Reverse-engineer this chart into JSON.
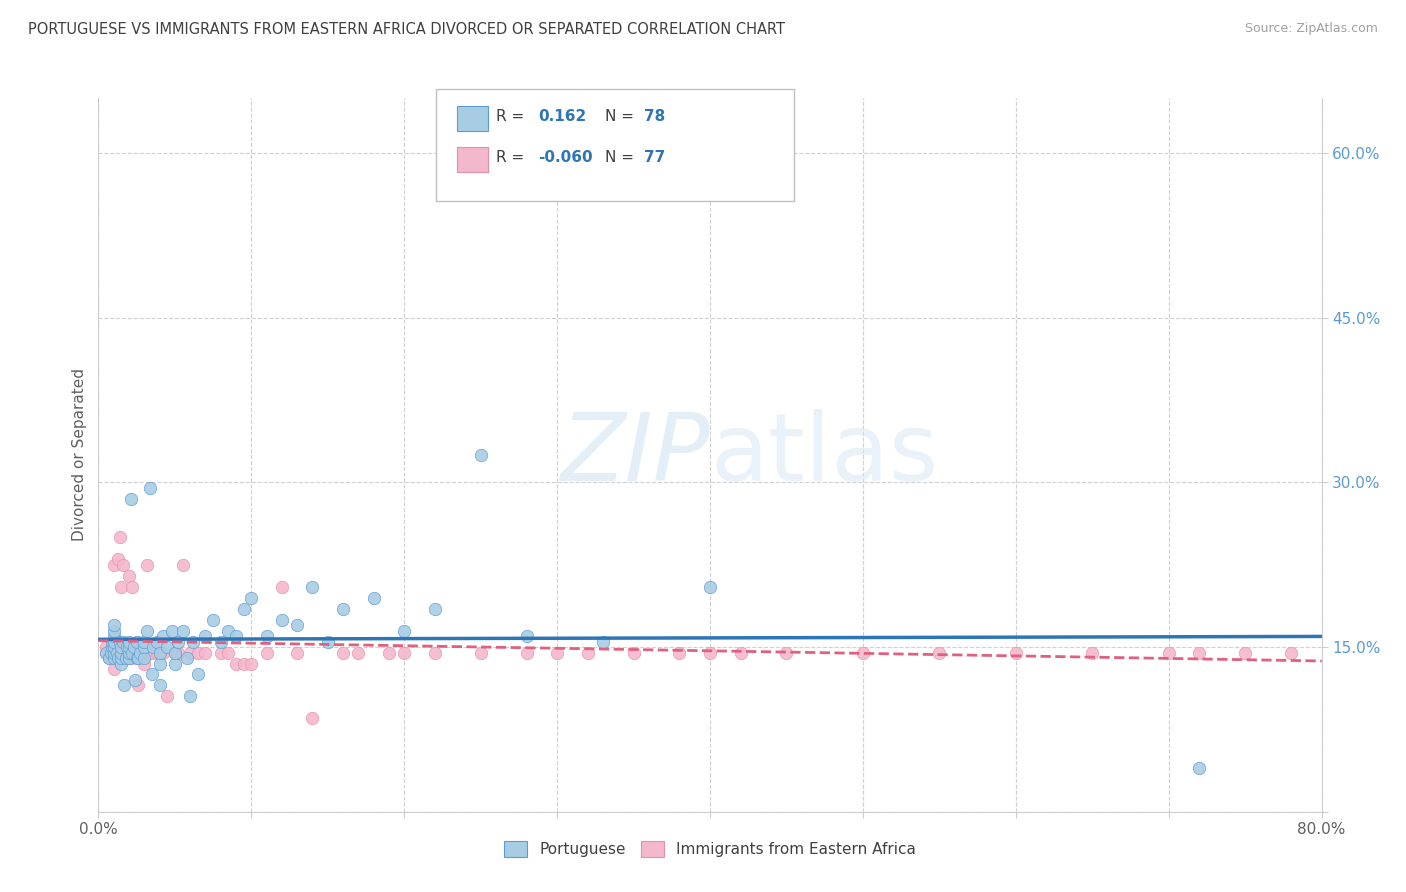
{
  "title": "PORTUGUESE VS IMMIGRANTS FROM EASTERN AFRICA DIVORCED OR SEPARATED CORRELATION CHART",
  "source": "Source: ZipAtlas.com",
  "ylabel": "Divorced or Separated",
  "xlim": [
    0.0,
    0.8
  ],
  "ylim": [
    0.0,
    0.65
  ],
  "x_tick_positions": [
    0.0,
    0.1,
    0.2,
    0.3,
    0.4,
    0.5,
    0.6,
    0.7,
    0.8
  ],
  "y_ticks_right": [
    0.0,
    0.15,
    0.3,
    0.45,
    0.6
  ],
  "y_tick_labels_right": [
    "",
    "15.0%",
    "30.0%",
    "45.0%",
    "60.0%"
  ],
  "color_blue_fill": "#a8cce4",
  "color_blue_edge": "#5b9bd5",
  "color_pink_fill": "#f4b8cc",
  "color_pink_edge": "#e88fa8",
  "color_line_blue": "#2e75b6",
  "color_line_pink": "#e06080",
  "color_grid": "#d0d0d0",
  "color_title": "#404040",
  "color_source": "#a0a0a0",
  "color_ylabel": "#606060",
  "color_ytick": "#5b9bd5",
  "color_xtick": "#606060",
  "watermark_color": "#d0e4f0",
  "background": "#ffffff",
  "portuguese_x": [
    0.005,
    0.007,
    0.008,
    0.009,
    0.009,
    0.01,
    0.01,
    0.01,
    0.01,
    0.01,
    0.01,
    0.01,
    0.012,
    0.013,
    0.014,
    0.015,
    0.015,
    0.015,
    0.015,
    0.016,
    0.017,
    0.018,
    0.019,
    0.02,
    0.02,
    0.02,
    0.02,
    0.021,
    0.022,
    0.023,
    0.024,
    0.025,
    0.025,
    0.026,
    0.027,
    0.03,
    0.03,
    0.03,
    0.032,
    0.034,
    0.035,
    0.036,
    0.038,
    0.04,
    0.04,
    0.04,
    0.042,
    0.045,
    0.048,
    0.05,
    0.05,
    0.052,
    0.055,
    0.058,
    0.06,
    0.062,
    0.065,
    0.07,
    0.075,
    0.08,
    0.085,
    0.09,
    0.095,
    0.1,
    0.11,
    0.12,
    0.13,
    0.14,
    0.15,
    0.16,
    0.18,
    0.2,
    0.22,
    0.25,
    0.28,
    0.33,
    0.4,
    0.72
  ],
  "portuguese_y": [
    0.145,
    0.14,
    0.145,
    0.15,
    0.155,
    0.14,
    0.145,
    0.15,
    0.155,
    0.16,
    0.165,
    0.17,
    0.145,
    0.14,
    0.155,
    0.135,
    0.14,
    0.145,
    0.15,
    0.155,
    0.115,
    0.14,
    0.15,
    0.14,
    0.145,
    0.15,
    0.155,
    0.285,
    0.145,
    0.15,
    0.12,
    0.14,
    0.155,
    0.14,
    0.145,
    0.14,
    0.15,
    0.155,
    0.165,
    0.295,
    0.125,
    0.15,
    0.155,
    0.115,
    0.135,
    0.145,
    0.16,
    0.15,
    0.165,
    0.135,
    0.145,
    0.155,
    0.165,
    0.14,
    0.105,
    0.155,
    0.125,
    0.16,
    0.175,
    0.155,
    0.165,
    0.16,
    0.185,
    0.195,
    0.16,
    0.175,
    0.17,
    0.205,
    0.155,
    0.185,
    0.195,
    0.165,
    0.185,
    0.325,
    0.16,
    0.155,
    0.205,
    0.04
  ],
  "immigrants_x": [
    0.005,
    0.005,
    0.006,
    0.007,
    0.008,
    0.009,
    0.009,
    0.01,
    0.01,
    0.01,
    0.01,
    0.01,
    0.01,
    0.01,
    0.011,
    0.012,
    0.013,
    0.014,
    0.015,
    0.015,
    0.015,
    0.016,
    0.017,
    0.018,
    0.02,
    0.02,
    0.02,
    0.021,
    0.022,
    0.025,
    0.025,
    0.026,
    0.03,
    0.03,
    0.032,
    0.035,
    0.038,
    0.04,
    0.042,
    0.045,
    0.05,
    0.052,
    0.055,
    0.06,
    0.065,
    0.07,
    0.08,
    0.085,
    0.09,
    0.095,
    0.1,
    0.11,
    0.12,
    0.13,
    0.14,
    0.16,
    0.17,
    0.19,
    0.2,
    0.22,
    0.25,
    0.28,
    0.3,
    0.32,
    0.35,
    0.38,
    0.4,
    0.42,
    0.45,
    0.5,
    0.55,
    0.6,
    0.65,
    0.7,
    0.72,
    0.75,
    0.78
  ],
  "immigrants_y": [
    0.145,
    0.15,
    0.145,
    0.14,
    0.145,
    0.145,
    0.15,
    0.13,
    0.14,
    0.145,
    0.14,
    0.15,
    0.155,
    0.225,
    0.14,
    0.14,
    0.23,
    0.25,
    0.145,
    0.15,
    0.205,
    0.225,
    0.14,
    0.145,
    0.14,
    0.145,
    0.215,
    0.14,
    0.205,
    0.145,
    0.155,
    0.115,
    0.14,
    0.135,
    0.225,
    0.145,
    0.145,
    0.145,
    0.145,
    0.105,
    0.145,
    0.145,
    0.225,
    0.145,
    0.145,
    0.145,
    0.145,
    0.145,
    0.135,
    0.135,
    0.135,
    0.145,
    0.205,
    0.145,
    0.085,
    0.145,
    0.145,
    0.145,
    0.145,
    0.145,
    0.145,
    0.145,
    0.145,
    0.145,
    0.145,
    0.145,
    0.145,
    0.145,
    0.145,
    0.145,
    0.145,
    0.145,
    0.145,
    0.145,
    0.145,
    0.145,
    0.145
  ]
}
